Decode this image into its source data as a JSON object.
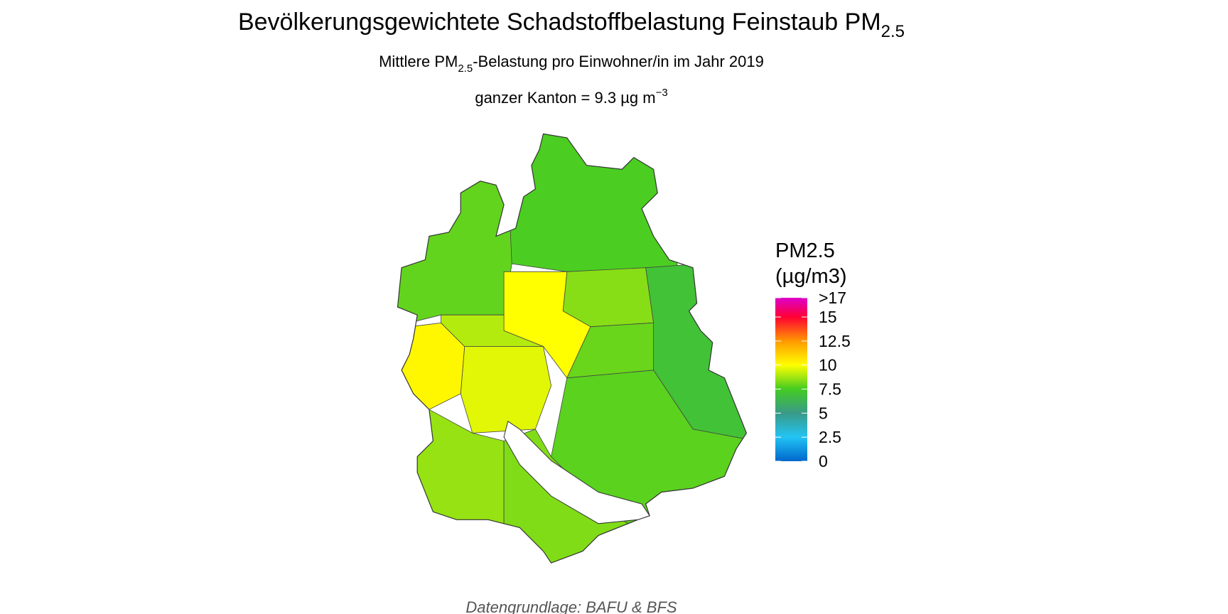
{
  "header": {
    "title": {
      "text": "Bevölkerungsgewichtete Schadstoffbelastung Feinstaub PM",
      "sub": "2.5"
    },
    "subtitle": {
      "before": "Mittlere PM",
      "sub": "2.5",
      "after": "-Belastung pro Einwohner/in im Jahr 2019"
    },
    "summary": {
      "text": "ganzer Kanton = 9.3 µg m",
      "sup": "−3"
    }
  },
  "map": {
    "regions": [
      {
        "value": 7.6
      },
      {
        "value": 7.9
      },
      {
        "value": 8.4
      },
      {
        "value": 7.0
      },
      {
        "value": 9.6
      },
      {
        "value": 10.2
      },
      {
        "value": 10.0
      },
      {
        "value": 7.8
      },
      {
        "value": 8.6
      },
      {
        "value": 8.0
      },
      {
        "value": 9.0
      },
      {
        "value": 8.3
      }
    ]
  },
  "legend": {
    "title_line1": "PM2.5",
    "title_line2": "(µg/m3)",
    "lim": [
      0,
      17
    ],
    "ticks": [
      0,
      2.5,
      5,
      7.5,
      10,
      12.5,
      15,
      {
        "value": 17,
        "label": ">17"
      }
    ],
    "colors": [
      "#0066cc",
      "#22c4f4",
      "#3a9a88",
      "#44cc22",
      "#ffff00",
      "#ff9900",
      "#ff0033",
      "#dd00cc"
    ]
  },
  "caption": "Datengrundlage: BAFU & BFS"
}
